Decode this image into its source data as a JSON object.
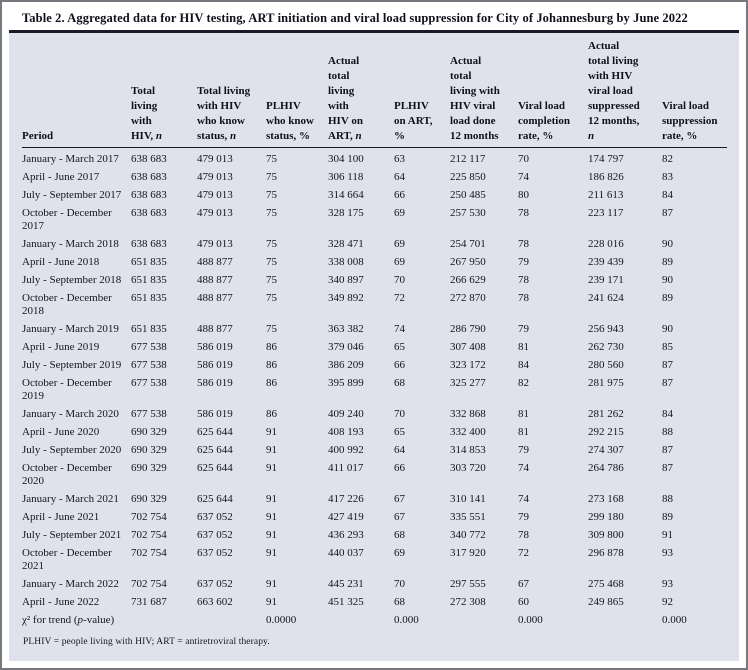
{
  "meta": {
    "title": "Table 2. Aggregated data for HIV testing, ART initiation and viral load suppression for City of Johannesburg by June 2022"
  },
  "colors": {
    "panel_background": "#dfe2ed",
    "rule": "#1b1b27",
    "text": "#14141f",
    "frame_border": "#77777e"
  },
  "table": {
    "columns": [
      {
        "id": "period",
        "lines": [
          "Period"
        ]
      },
      {
        "id": "total-living-with-hiv",
        "lines": [
          "Total",
          "living",
          "with",
          "HIV, *n*"
        ]
      },
      {
        "id": "total-living-know-status",
        "lines": [
          "Total living",
          "with HIV",
          "who know",
          "status, *n*"
        ]
      },
      {
        "id": "plhiv-know-status-pct",
        "lines": [
          "PLHIV",
          "who know",
          "status, %"
        ]
      },
      {
        "id": "actual-total-on-art",
        "lines": [
          "Actual",
          "total",
          "living",
          "with",
          "HIV on",
          "ART, *n*"
        ]
      },
      {
        "id": "plhiv-on-art-pct",
        "lines": [
          "PLHIV",
          "on ART,",
          "%"
        ]
      },
      {
        "id": "actual-total-vl-done",
        "lines": [
          "Actual",
          "total",
          "living with",
          "HIV viral",
          "load done",
          "12 months"
        ]
      },
      {
        "id": "vl-completion-rate",
        "lines": [
          "Viral load",
          "completion",
          "rate, %"
        ]
      },
      {
        "id": "actual-total-vl-suppressed",
        "lines": [
          "Actual",
          "total living",
          "with HIV",
          "viral load",
          "suppressed",
          "12 months,",
          "*n*"
        ]
      },
      {
        "id": "vl-suppression-rate",
        "lines": [
          "Viral load",
          "suppression",
          "rate, %"
        ]
      }
    ],
    "rows": [
      [
        "January - March 2017",
        "638 683",
        "479 013",
        "75",
        "304 100",
        "63",
        "212 117",
        "70",
        "174 797",
        "82"
      ],
      [
        "April - June 2017",
        "638 683",
        "479 013",
        "75",
        "306 118",
        "64",
        "225 850",
        "74",
        "186 826",
        "83"
      ],
      [
        "July - September 2017",
        "638 683",
        "479 013",
        "75",
        "314 664",
        "66",
        "250 485",
        "80",
        "211 613",
        "84"
      ],
      [
        "October - December 2017",
        "638 683",
        "479 013",
        "75",
        "328 175",
        "69",
        "257 530",
        "78",
        "223 117",
        "87"
      ],
      [
        "January - March 2018",
        "638 683",
        "479 013",
        "75",
        "328 471",
        "69",
        "254 701",
        "78",
        "228 016",
        "90"
      ],
      [
        "April - June 2018",
        "651 835",
        "488 877",
        "75",
        "338 008",
        "69",
        "267 950",
        "79",
        "239 439",
        "89"
      ],
      [
        "July - September 2018",
        "651 835",
        "488 877",
        "75",
        "340 897",
        "70",
        "266 629",
        "78",
        "239 171",
        "90"
      ],
      [
        "October - December 2018",
        "651 835",
        "488 877",
        "75",
        "349 892",
        "72",
        "272 870",
        "78",
        "241 624",
        "89"
      ],
      [
        "January - March 2019",
        "651 835",
        "488 877",
        "75",
        "363 382",
        "74",
        "286 790",
        "79",
        "256 943",
        "90"
      ],
      [
        "April - June 2019",
        "677 538",
        "586 019",
        "86",
        "379 046",
        "65",
        "307 408",
        "81",
        "262 730",
        "85"
      ],
      [
        "July - September 2019",
        "677 538",
        "586 019",
        "86",
        "386 209",
        "66",
        "323 172",
        "84",
        "280 560",
        "87"
      ],
      [
        "October - December 2019",
        "677 538",
        "586 019",
        "86",
        "395 899",
        "68",
        "325 277",
        "82",
        "281 975",
        "87"
      ],
      [
        "January - March 2020",
        "677 538",
        "586 019",
        "86",
        "409 240",
        "70",
        "332 868",
        "81",
        "281 262",
        "84"
      ],
      [
        "April - June 2020",
        "690 329",
        "625 644",
        "91",
        "408 193",
        "65",
        "332 400",
        "81",
        "292 215",
        "88"
      ],
      [
        "July - September 2020",
        "690 329",
        "625 644",
        "91",
        "400 992",
        "64",
        "314 853",
        "79",
        "274 307",
        "87"
      ],
      [
        "October - December 2020",
        "690 329",
        "625 644",
        "91",
        "411 017",
        "66",
        "303 720",
        "74",
        "264 786",
        "87"
      ],
      [
        "January - March 2021",
        "690 329",
        "625 644",
        "91",
        "417 226",
        "67",
        "310 141",
        "74",
        "273 168",
        "88"
      ],
      [
        "April - June 2021",
        "702 754",
        "637 052",
        "91",
        "427 419",
        "67",
        "335 551",
        "79",
        "299 180",
        "89"
      ],
      [
        "July - September 2021",
        "702 754",
        "637 052",
        "91",
        "436 293",
        "68",
        "340 772",
        "78",
        "309 800",
        "91"
      ],
      [
        "October - December 2021",
        "702 754",
        "637 052",
        "91",
        "440 037",
        "69",
        "317 920",
        "72",
        "296 878",
        "93"
      ],
      [
        "January - March 2022",
        "702 754",
        "637 052",
        "91",
        "445 231",
        "70",
        "297 555",
        "67",
        "275 468",
        "93"
      ],
      [
        "April - June 2022",
        "731 687",
        "663 602",
        "91",
        "451 325",
        "68",
        "272 308",
        "60",
        "249 865",
        "92"
      ],
      [
        "χ² for trend (*p*-value)",
        "",
        "",
        "0.0000",
        "",
        "0.000",
        "",
        "0.000",
        "",
        "0.000"
      ]
    ],
    "footnote": "PLHIV = people living with HIV; ART = antiretroviral therapy."
  }
}
